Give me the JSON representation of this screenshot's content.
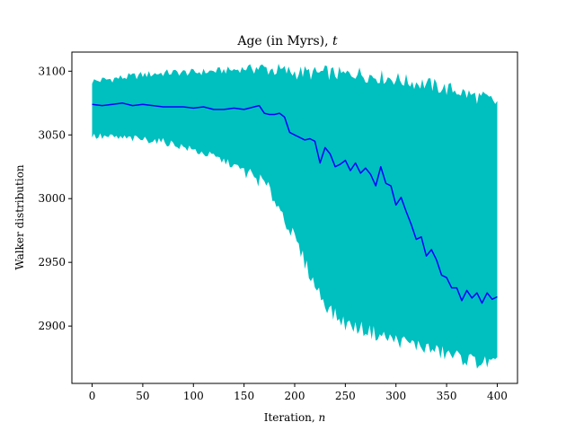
{
  "chart_data": {
    "type": "line",
    "title_main": "Age (in Myrs), ",
    "title_var": "t",
    "xlabel_main": "Iteration, ",
    "xlabel_var": "n",
    "ylabel": "Walker distribution",
    "xlim": [
      -20,
      420
    ],
    "ylim": [
      2855,
      3115
    ],
    "xticks": [
      0,
      50,
      100,
      150,
      200,
      250,
      300,
      350,
      400
    ],
    "yticks": [
      2900,
      2950,
      3000,
      3050,
      3100
    ],
    "fill_color": "#00bfbf",
    "line_color": "#0000ff",
    "grid": false,
    "band": {
      "x": [
        0,
        20,
        40,
        60,
        80,
        100,
        120,
        140,
        160,
        170,
        180,
        190,
        200,
        210,
        220,
        230,
        240,
        250,
        260,
        270,
        280,
        290,
        300,
        310,
        320,
        330,
        340,
        350,
        360,
        370,
        380,
        390,
        400
      ],
      "upper": [
        3092,
        3094,
        3096,
        3098,
        3099,
        3099,
        3100,
        3101,
        3103,
        3102,
        3101,
        3100,
        3099,
        3099,
        3098,
        3099,
        3098,
        3097,
        3099,
        3097,
        3096,
        3095,
        3094,
        3092,
        3091,
        3090,
        3088,
        3086,
        3085,
        3082,
        3080,
        3078,
        3075
      ],
      "lower": [
        3049,
        3048,
        3047,
        3046,
        3043,
        3038,
        3033,
        3026,
        3017,
        3012,
        3000,
        2985,
        2968,
        2950,
        2932,
        2918,
        2908,
        2902,
        2899,
        2897,
        2894,
        2891,
        2889,
        2887,
        2885,
        2883,
        2880,
        2878,
        2876,
        2874,
        2872,
        2871,
        2870
      ]
    },
    "series": [
      {
        "x": [
          0,
          10,
          20,
          30,
          40,
          50,
          60,
          70,
          80,
          90,
          100,
          110,
          120,
          130,
          140,
          150,
          160,
          165,
          170,
          175,
          180,
          185,
          190,
          195,
          200,
          205,
          210,
          215,
          220,
          225,
          230,
          235,
          240,
          245,
          250,
          255,
          260,
          265,
          270,
          275,
          280,
          285,
          290,
          295,
          300,
          305,
          310,
          315,
          320,
          325,
          330,
          335,
          340,
          345,
          350,
          355,
          360,
          365,
          370,
          375,
          380,
          385,
          390,
          395,
          400
        ],
        "values": [
          3074,
          3073,
          3074,
          3075,
          3073,
          3074,
          3073,
          3072,
          3072,
          3072,
          3071,
          3072,
          3070,
          3070,
          3071,
          3070,
          3072,
          3073,
          3067,
          3066,
          3066,
          3067,
          3064,
          3052,
          3050,
          3048,
          3046,
          3047,
          3045,
          3028,
          3040,
          3035,
          3025,
          3027,
          3030,
          3022,
          3028,
          3020,
          3024,
          3019,
          3010,
          3025,
          3012,
          3010,
          2995,
          3001,
          2990,
          2980,
          2968,
          2970,
          2955,
          2960,
          2952,
          2940,
          2938,
          2930,
          2930,
          2920,
          2928,
          2922,
          2926,
          2918,
          2926,
          2921,
          2923
        ]
      }
    ]
  }
}
